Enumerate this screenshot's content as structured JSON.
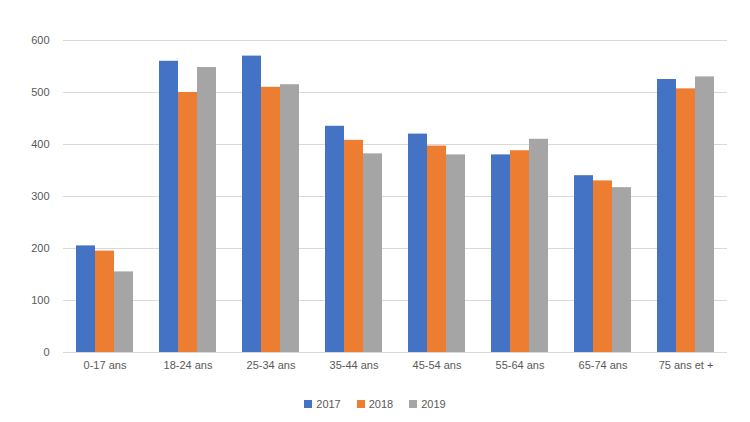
{
  "chart_data": {
    "type": "bar",
    "categories": [
      "0-17 ans",
      "18-24 ans",
      "25-34 ans",
      "35-44 ans",
      "45-54 ans",
      "55-64 ans",
      "65-74 ans",
      "75 ans et +"
    ],
    "series": [
      {
        "name": "2017",
        "color": "#4472c4",
        "values": [
          205,
          560,
          570,
          435,
          420,
          380,
          340,
          525
        ]
      },
      {
        "name": "2018",
        "color": "#ed7d31",
        "values": [
          195,
          500,
          510,
          408,
          397,
          388,
          330,
          507
        ]
      },
      {
        "name": "2019",
        "color": "#a5a5a5",
        "values": [
          155,
          548,
          515,
          382,
          380,
          410,
          317,
          530
        ]
      }
    ],
    "ylim": [
      0,
      600
    ],
    "yticks": [
      0,
      100,
      200,
      300,
      400,
      500,
      600
    ],
    "grid": true,
    "legend": "bottom"
  }
}
